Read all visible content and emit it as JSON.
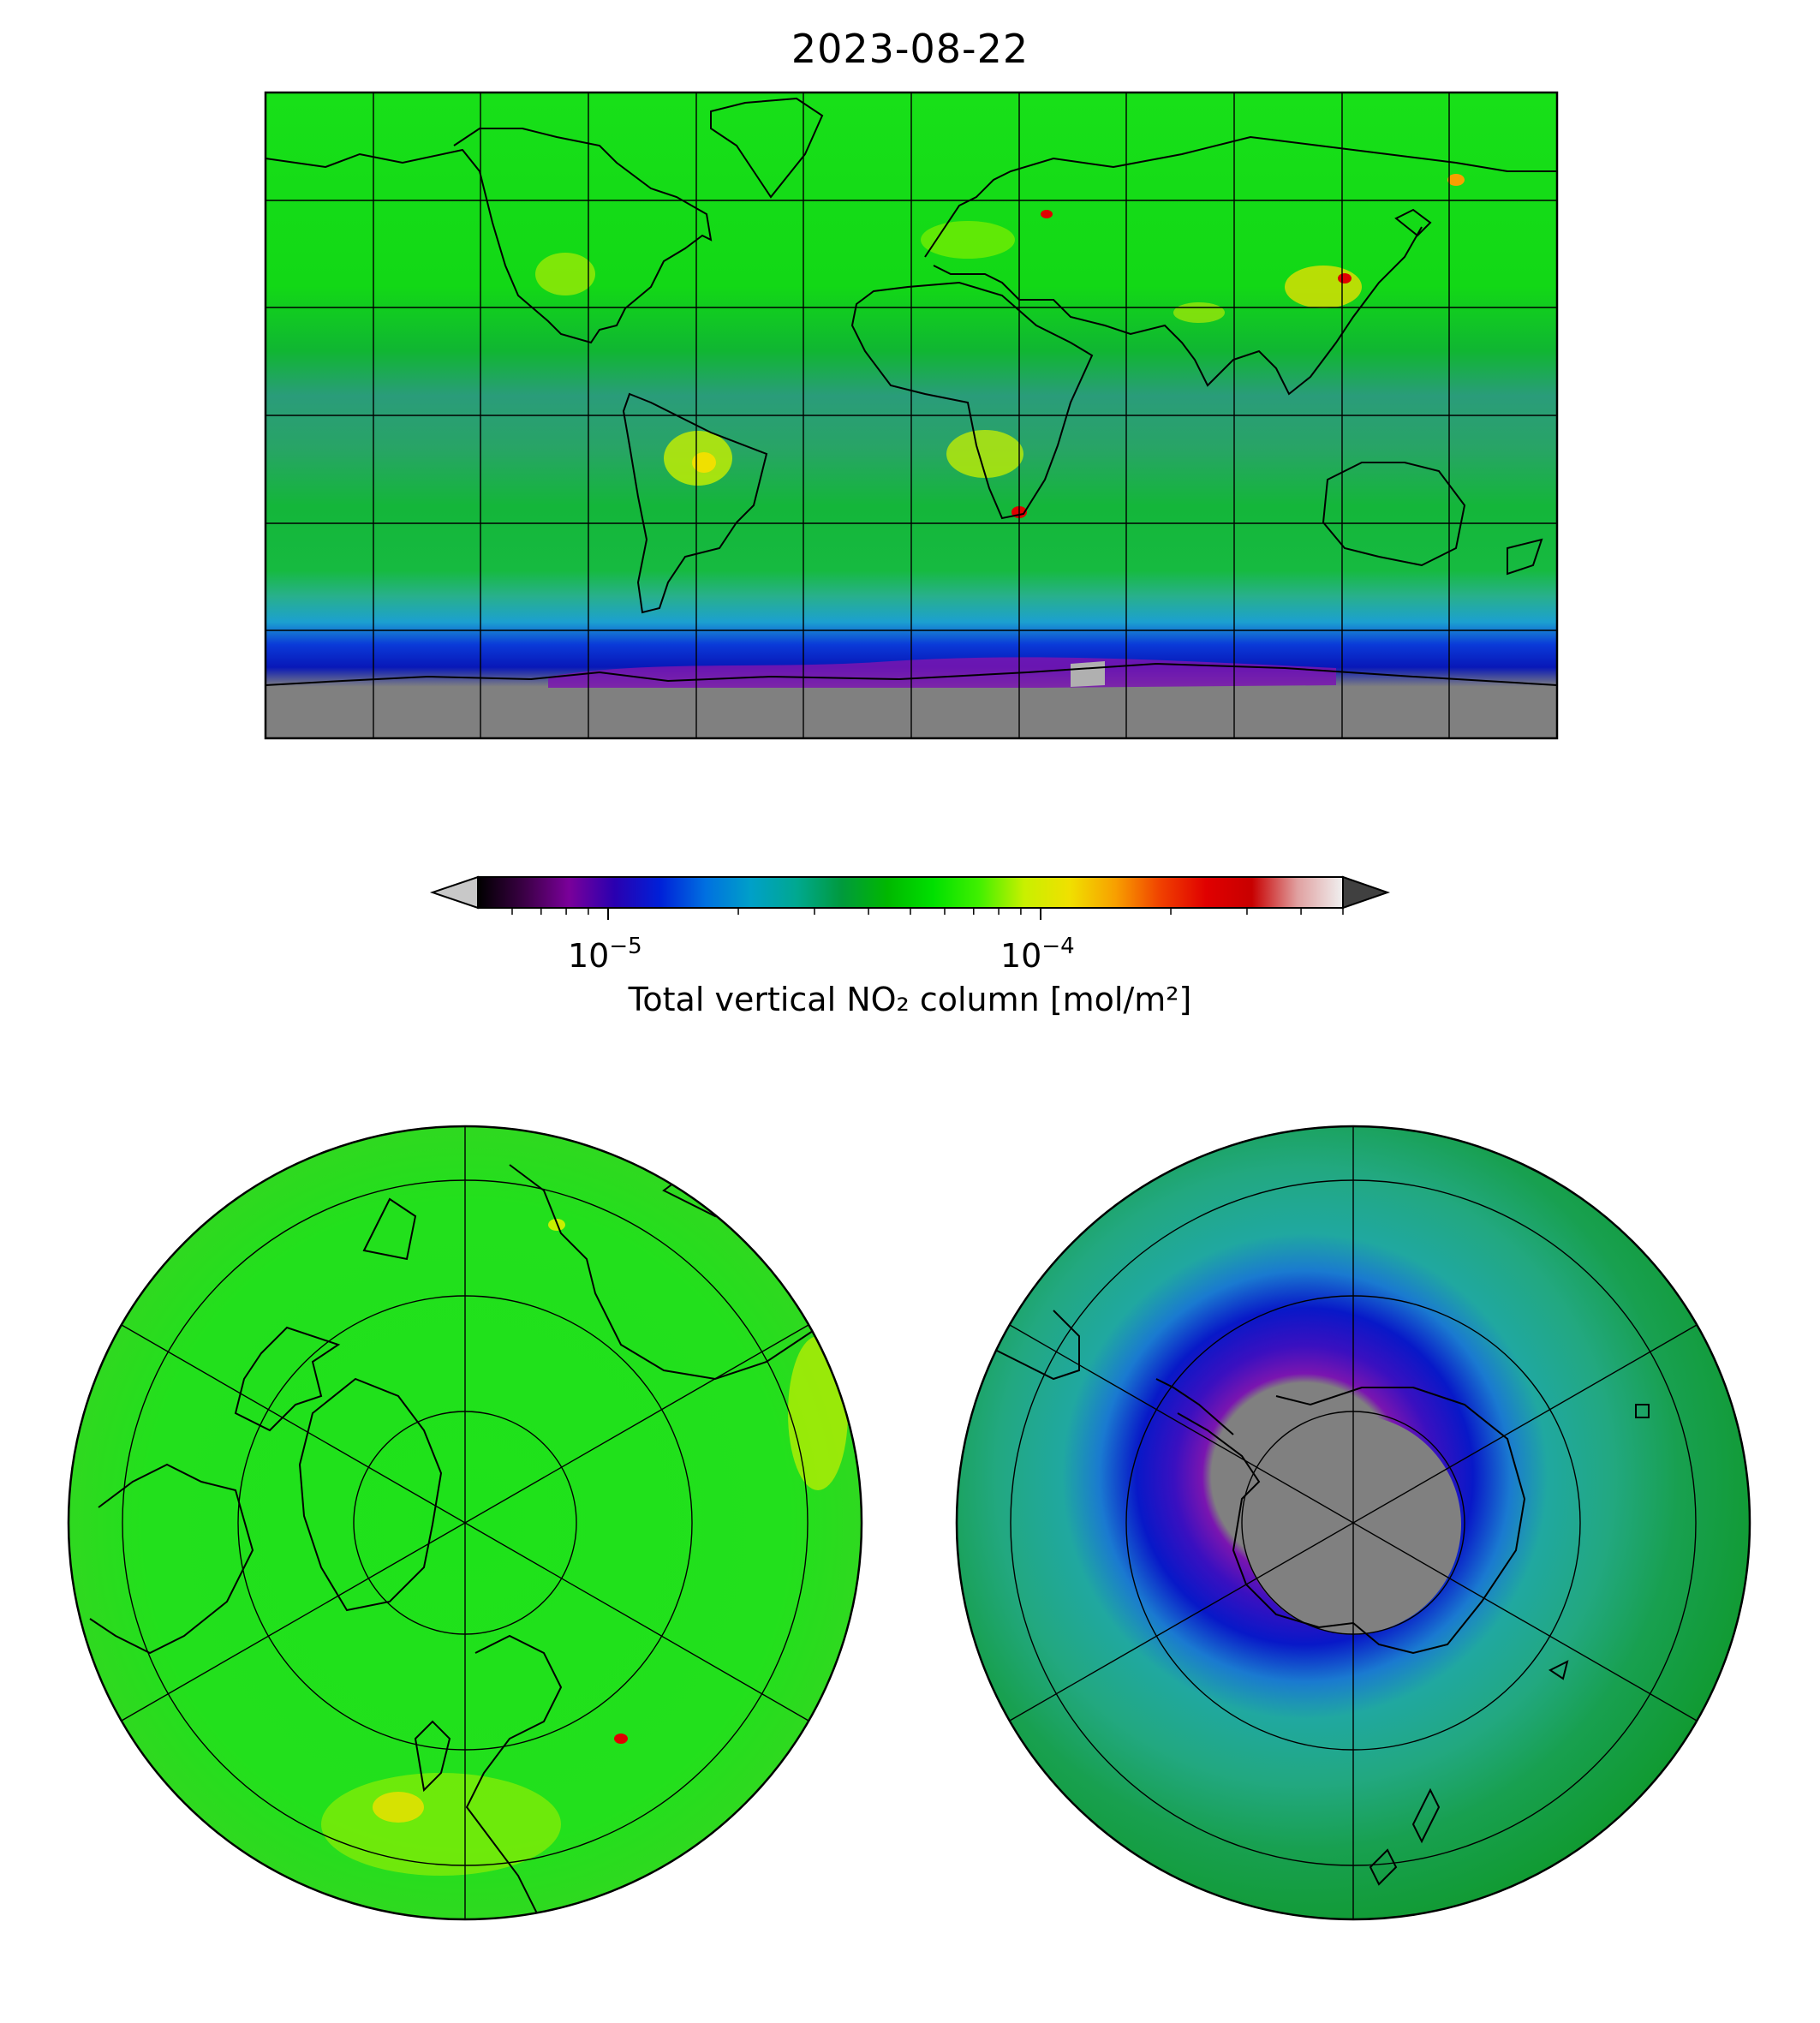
{
  "title": "2023-08-22",
  "colorbar": {
    "label": "Total vertical NO₂ column [mol/m²]",
    "scale": "log",
    "ticks": [
      {
        "base": "10",
        "exp": "−5",
        "value": 1e-05
      },
      {
        "base": "10",
        "exp": "−4",
        "value": 0.0001
      }
    ],
    "range": [
      5e-06,
      0.0005
    ],
    "extend": "both",
    "under_color": "#c8c8c8",
    "over_color": "#404040",
    "stops": [
      "#000000",
      "#3a0044",
      "#7a009a",
      "#2a00b0",
      "#0020d8",
      "#0070e0",
      "#00a0c8",
      "#00a890",
      "#009a3c",
      "#00b800",
      "#00e000",
      "#40f000",
      "#c8f000",
      "#f0e000",
      "#f8a000",
      "#f04000",
      "#e00000",
      "#c80000",
      "#e0a0a0",
      "#f0f0f0"
    ]
  },
  "panels": {
    "global": {
      "projection": "PlateCarree",
      "lon_range": [
        -180,
        180
      ],
      "lat_range": [
        -90,
        90
      ],
      "gridlines": true
    },
    "north_polar": {
      "projection": "NorthPolarStereo",
      "gridlines": true
    },
    "south_polar": {
      "projection": "SouthPolarStereo",
      "gridlines": true
    }
  },
  "colors": {
    "background_field": "#1ee21a",
    "tropics_band": "#2aa06a",
    "ozone_hole_outer": "#0a1fd0",
    "ozone_hole_inner": "#7a15b0",
    "missing": "#808080",
    "coast": "#000000"
  }
}
